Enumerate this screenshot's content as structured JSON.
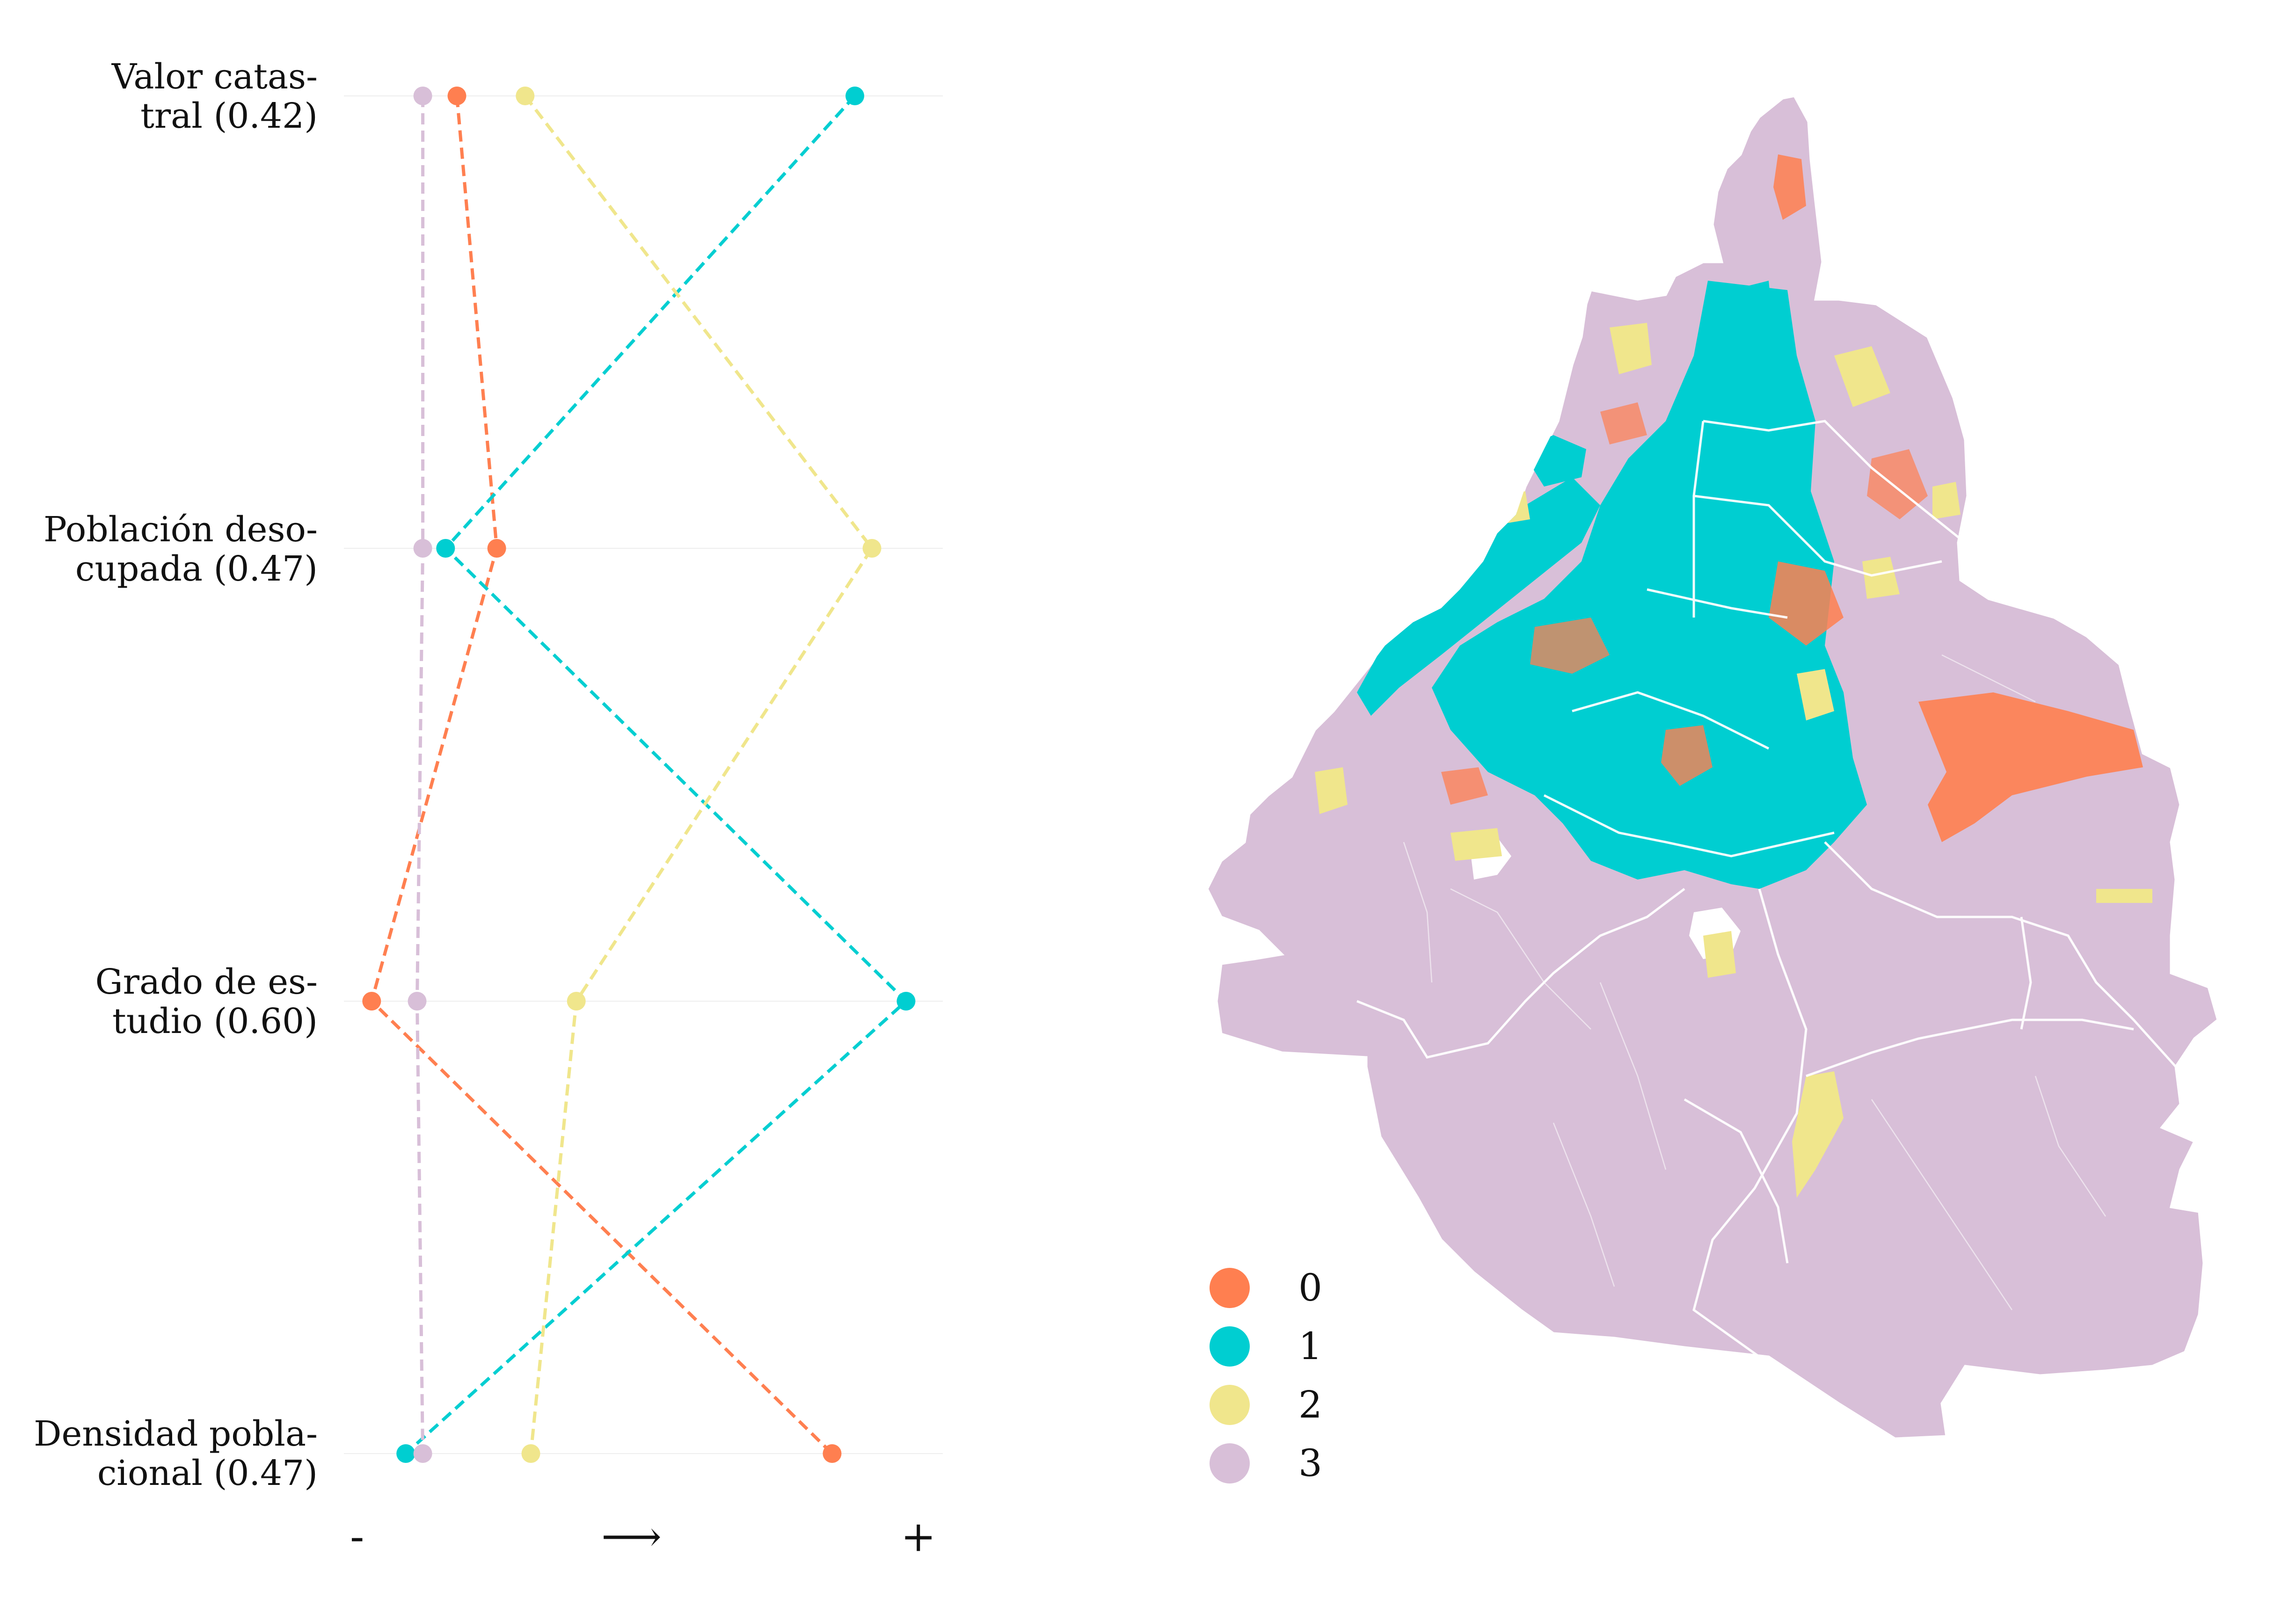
{
  "chart_data": {
    "type": "line",
    "xlabel": "",
    "ylabel": "",
    "grid": false,
    "legend_position": "bottom-left",
    "axis_marks": {
      "minus": "-",
      "arrow": "⟶",
      "plus": "+"
    },
    "xlim": [
      0,
      1
    ],
    "categories": [
      {
        "line1": "Valor catas-",
        "line2": "tral (0.42)"
      },
      {
        "line1": "Población deso-",
        "line2": "cupada (0.47)"
      },
      {
        "line1": "Grado de es-",
        "line2": "tudio (0.60)"
      },
      {
        "line1": "Densidad pobla-",
        "line2": "cional (0.47)"
      }
    ],
    "series": [
      {
        "name": "0",
        "color": "#FF7F50",
        "values": [
          0.17,
          0.24,
          0.02,
          0.83
        ]
      },
      {
        "name": "1",
        "color": "#00CED1",
        "values": [
          0.87,
          0.15,
          0.96,
          0.08
        ]
      },
      {
        "name": "2",
        "color": "#F0E68C",
        "values": [
          0.29,
          0.9,
          0.38,
          0.3
        ]
      },
      {
        "name": "3",
        "color": "#D8BFD8",
        "values": [
          0.11,
          0.11,
          0.1,
          0.11
        ]
      }
    ]
  },
  "map": {
    "background_color": "#D8BFD8",
    "border_color": "#ffffff",
    "cluster_colors": [
      "#FF7F50",
      "#00CED1",
      "#F0E68C",
      "#D8BFD8"
    ]
  }
}
